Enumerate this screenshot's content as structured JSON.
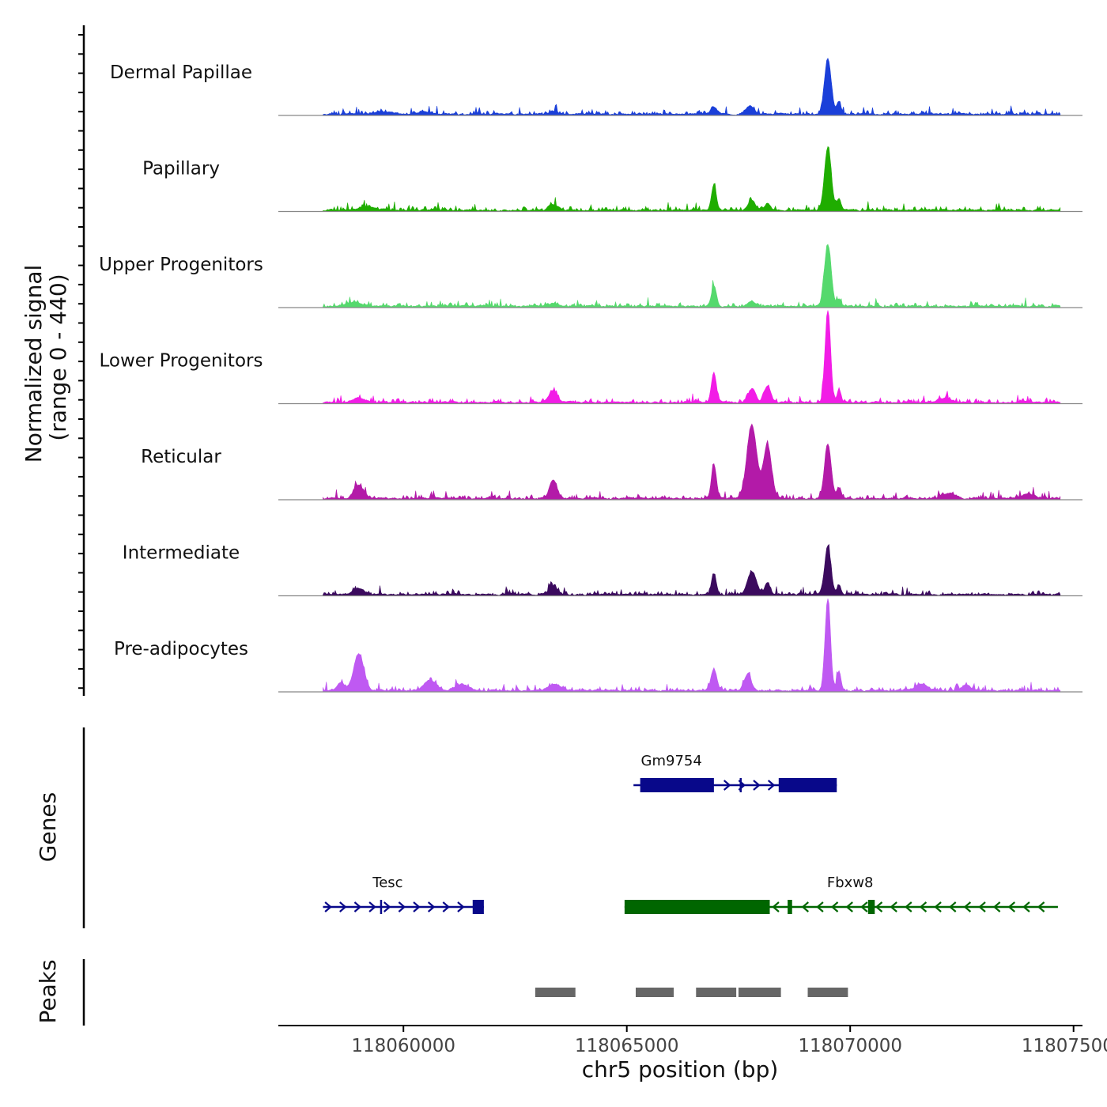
{
  "chart_data": {
    "type": "area",
    "title": "",
    "ylabel_line1": "Normalized signal",
    "ylabel_line2": "(range 0 - 440)",
    "xlabel": "chr5 position (bp)",
    "xlim": [
      118057200,
      118075200
    ],
    "ylim": [
      0,
      440
    ],
    "x_ticks": [
      118060000,
      118065000,
      118070000,
      118075000
    ],
    "x_tick_labels": [
      "118060000",
      "118065000",
      "118070000",
      "118075000"
    ],
    "track_labels": {
      "genes": "Genes",
      "peaks": "Peaks"
    },
    "series": [
      {
        "name": "Dermal Papillae",
        "color": "#1a3fd9",
        "peaks": [
          [
            118069500,
            260,
            75
          ],
          [
            118069750,
            60,
            45
          ],
          [
            118067750,
            40,
            90
          ],
          [
            118066950,
            35,
            70
          ],
          [
            118063350,
            15,
            100
          ],
          [
            118059500,
            10,
            200
          ],
          [
            118060500,
            12,
            150
          ]
        ]
      },
      {
        "name": "Papillary",
        "color": "#1fad00",
        "peaks": [
          [
            118069500,
            300,
            75
          ],
          [
            118069750,
            55,
            45
          ],
          [
            118066950,
            120,
            55
          ],
          [
            118067800,
            45,
            80
          ],
          [
            118068150,
            35,
            60
          ],
          [
            118063350,
            30,
            100
          ],
          [
            118059200,
            15,
            200
          ]
        ]
      },
      {
        "name": "Upper Progenitors",
        "color": "#55d96d",
        "peaks": [
          [
            118069500,
            290,
            75
          ],
          [
            118066950,
            100,
            55
          ],
          [
            118069750,
            30,
            45
          ],
          [
            118067800,
            25,
            80
          ],
          [
            118058900,
            20,
            150
          ],
          [
            118063350,
            12,
            100
          ]
        ]
      },
      {
        "name": "Lower Progenitors",
        "color": "#f21ce6",
        "peaks": [
          [
            118069500,
            440,
            60
          ],
          [
            118069750,
            60,
            45
          ],
          [
            118066950,
            140,
            55
          ],
          [
            118067800,
            65,
            80
          ],
          [
            118068150,
            80,
            70
          ],
          [
            118063350,
            55,
            90
          ],
          [
            118059000,
            20,
            150
          ],
          [
            118072100,
            20,
            150
          ]
        ]
      },
      {
        "name": "Reticular",
        "color": "#b31aa8",
        "peaks": [
          [
            118069500,
            260,
            75
          ],
          [
            118069750,
            50,
            45
          ],
          [
            118066950,
            160,
            55
          ],
          [
            118067800,
            350,
            110
          ],
          [
            118068150,
            250,
            90
          ],
          [
            118063350,
            90,
            80
          ],
          [
            118059000,
            60,
            110
          ],
          [
            118072200,
            25,
            150
          ],
          [
            118074000,
            20,
            150
          ]
        ]
      },
      {
        "name": "Intermediate",
        "color": "#3b0a5e",
        "peaks": [
          [
            118069500,
            230,
            70
          ],
          [
            118069750,
            45,
            45
          ],
          [
            118066950,
            95,
            55
          ],
          [
            118067800,
            105,
            100
          ],
          [
            118068150,
            55,
            60
          ],
          [
            118063350,
            40,
            90
          ],
          [
            118059000,
            30,
            120
          ]
        ]
      },
      {
        "name": "Pre-adipocytes",
        "color": "#bf59f2",
        "peaks": [
          [
            118069500,
            440,
            60
          ],
          [
            118069750,
            95,
            45
          ],
          [
            118066950,
            100,
            65
          ],
          [
            118067700,
            70,
            80
          ],
          [
            118059000,
            175,
            110
          ],
          [
            118058600,
            40,
            80
          ],
          [
            118060600,
            50,
            130
          ],
          [
            118061300,
            30,
            150
          ],
          [
            118063400,
            30,
            150
          ],
          [
            118071600,
            30,
            150
          ],
          [
            118072600,
            25,
            100
          ]
        ]
      }
    ],
    "genes": [
      {
        "name": "Gm9754",
        "strand": "+",
        "color": "#08088a",
        "row": 0,
        "label_x": 118066000,
        "start": 118065150,
        "end": 118069700,
        "exons": [
          [
            118065300,
            118066950
          ],
          [
            118068400,
            118069700
          ]
        ],
        "marks": [
          118067550
        ]
      },
      {
        "name": "Tesc",
        "strand": "+",
        "color": "#08088a",
        "row": 1,
        "label_x": 118059650,
        "start": 118058200,
        "end": 118061800,
        "exons": [
          [
            118061550,
            118061800
          ]
        ],
        "marks": [
          118059500
        ]
      },
      {
        "name": "Fbxw8",
        "strand": "-",
        "color": "#006600",
        "row": 1,
        "label_x": 118070000,
        "start": 118064950,
        "end": 118074650,
        "exons": [
          [
            118064950,
            118068200
          ],
          [
            118068600,
            118068700
          ],
          [
            118070400,
            118070550
          ]
        ],
        "marks": []
      }
    ],
    "peaks_track": {
      "color": "#666666",
      "regions": [
        [
          118062950,
          118063850
        ],
        [
          118065200,
          118066050
        ],
        [
          118066550,
          118067450
        ],
        [
          118067500,
          118068450
        ],
        [
          118069050,
          118069950
        ]
      ]
    }
  }
}
